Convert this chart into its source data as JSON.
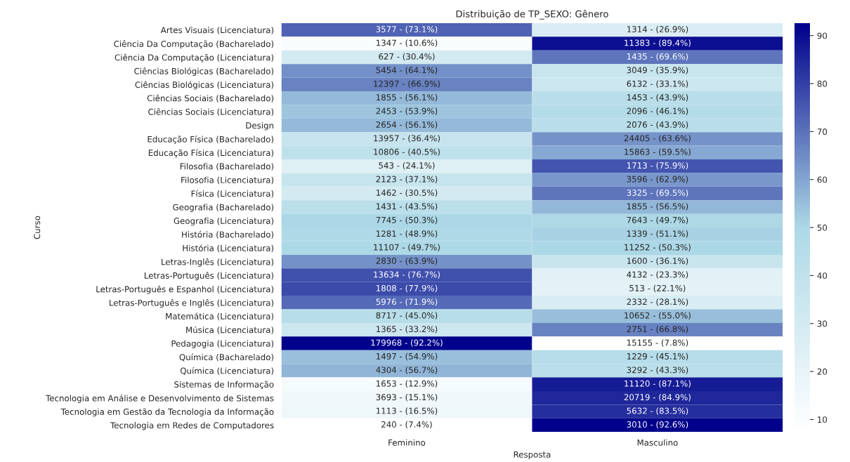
{
  "chart_data": {
    "type": "heatmap",
    "title": "Distribuição de TP_SEXO: Gênero",
    "xlabel": "Resposta",
    "ylabel": "Curso",
    "categories": [
      "Feminino",
      "Masculino"
    ],
    "y_categories": [
      "Artes Visuais (Licenciatura)",
      "Ciência Da Computação (Bacharelado)",
      "Ciência Da Computação (Licenciatura)",
      "Ciências Biológicas (Bacharelado)",
      "Ciências Biológicas (Licenciatura)",
      "Ciências Sociais (Bacharelado)",
      "Ciências Sociais (Licenciatura)",
      "Design",
      "Educação Física (Bacharelado)",
      "Educação Física (Licenciatura)",
      "Filosofia (Bacharelado)",
      "Filosofia (Licenciatura)",
      "Física (Licenciatura)",
      "Geografia (Bacharelado)",
      "Geografia (Licenciatura)",
      "História (Bacharelado)",
      "História (Licenciatura)",
      "Letras-Inglês (Licenciatura)",
      "Letras-Português (Licenciatura)",
      "Letras-Português e Espanhol (Licenciatura)",
      "Letras-Português e Inglês (Licenciatura)",
      "Matemática (Licenciatura)",
      "Música (Licenciatura)",
      "Pedagogia (Licenciatura)",
      "Química (Bacharelado)",
      "Química (Licenciatura)",
      "Sistemas de Informação",
      "Tecnologia em Análise e Desenvolvimento de Sistemas",
      "Tecnologia em Gestão da Tecnologia da Informação",
      "Tecnologia em Redes de Computadores"
    ],
    "cells": [
      [
        73.1,
        26.9
      ],
      [
        10.6,
        89.4
      ],
      [
        30.4,
        69.6
      ],
      [
        64.1,
        35.9
      ],
      [
        66.9,
        33.1
      ],
      [
        56.1,
        43.9
      ],
      [
        53.9,
        46.1
      ],
      [
        56.1,
        43.9
      ],
      [
        36.4,
        63.6
      ],
      [
        40.5,
        59.5
      ],
      [
        24.1,
        75.9
      ],
      [
        37.1,
        62.9
      ],
      [
        30.5,
        69.5
      ],
      [
        43.5,
        56.5
      ],
      [
        50.3,
        49.7
      ],
      [
        48.9,
        51.1
      ],
      [
        49.7,
        50.3
      ],
      [
        63.9,
        36.1
      ],
      [
        76.7,
        23.3
      ],
      [
        77.9,
        22.1
      ],
      [
        71.9,
        28.1
      ],
      [
        45.0,
        55.0
      ],
      [
        33.2,
        66.8
      ],
      [
        92.2,
        7.8
      ],
      [
        54.9,
        45.1
      ],
      [
        56.7,
        43.3
      ],
      [
        12.9,
        87.1
      ],
      [
        15.1,
        84.9
      ],
      [
        16.5,
        83.5
      ],
      [
        7.4,
        92.6
      ]
    ],
    "cell_labels": [
      [
        "3577 - (73.1%)",
        "1314 - (26.9%)"
      ],
      [
        "1347 - (10.6%)",
        "11383 - (89.4%)"
      ],
      [
        "627 - (30.4%)",
        "1435 - (69.6%)"
      ],
      [
        "5454 - (64.1%)",
        "3049 - (35.9%)"
      ],
      [
        "12397 - (66.9%)",
        "6132 - (33.1%)"
      ],
      [
        "1855 - (56.1%)",
        "1453 - (43.9%)"
      ],
      [
        "2453 - (53.9%)",
        "2096 - (46.1%)"
      ],
      [
        "2654 - (56.1%)",
        "2076 - (43.9%)"
      ],
      [
        "13957 - (36.4%)",
        "24405 - (63.6%)"
      ],
      [
        "10806 - (40.5%)",
        "15863 - (59.5%)"
      ],
      [
        "543 - (24.1%)",
        "1713 - (75.9%)"
      ],
      [
        "2123 - (37.1%)",
        "3596 - (62.9%)"
      ],
      [
        "1462 - (30.5%)",
        "3325 - (69.5%)"
      ],
      [
        "1431 - (43.5%)",
        "1855 - (56.5%)"
      ],
      [
        "7745 - (50.3%)",
        "7643 - (49.7%)"
      ],
      [
        "1281 - (48.9%)",
        "1339 - (51.1%)"
      ],
      [
        "11107 - (49.7%)",
        "11252 - (50.3%)"
      ],
      [
        "2830 - (63.9%)",
        "1600 - (36.1%)"
      ],
      [
        "13634 - (76.7%)",
        "4132 - (23.3%)"
      ],
      [
        "1808 - (77.9%)",
        "513 - (22.1%)"
      ],
      [
        "5976 - (71.9%)",
        "2332 - (28.1%)"
      ],
      [
        "8717 - (45.0%)",
        "10652 - (55.0%)"
      ],
      [
        "1365 - (33.2%)",
        "2751 - (66.8%)"
      ],
      [
        "179968 - (92.2%)",
        "15155 - (7.8%)"
      ],
      [
        "1497 - (54.9%)",
        "1229 - (45.1%)"
      ],
      [
        "4304 - (56.7%)",
        "3292 - (43.3%)"
      ],
      [
        "1653 - (12.9%)",
        "11120 - (87.1%)"
      ],
      [
        "3693 - (15.1%)",
        "20719 - (84.9%)"
      ],
      [
        "1113 - (16.5%)",
        "5632 - (83.5%)"
      ],
      [
        "240 - (7.4%)",
        "3010 - (92.6%)"
      ]
    ],
    "clim": [
      7.4,
      92.6
    ],
    "cticks": [
      10,
      20,
      30,
      40,
      50,
      60,
      70,
      80,
      90
    ]
  }
}
